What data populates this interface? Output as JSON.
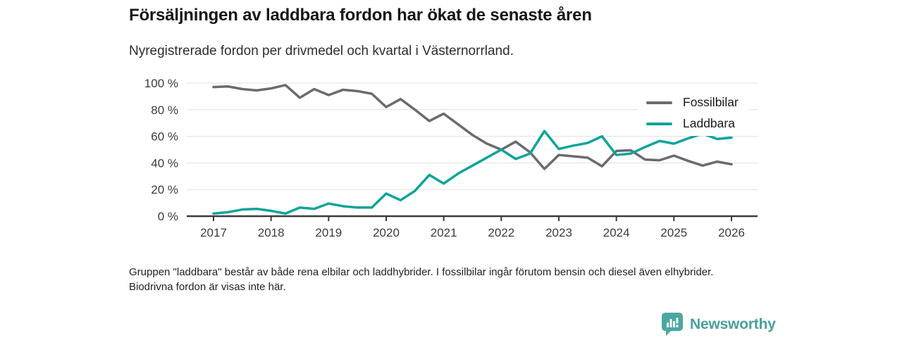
{
  "header": {
    "title": "Försäljningen av laddbara fordon har ökat de senaste åren",
    "subtitle": "Nyregistrerade fordon per drivmedel och kvartal i Västernorrland."
  },
  "footnote": {
    "text": "Gruppen \"laddbara\" består av både rena elbilar och laddhybrider. I fossilbilar ingår förutom bensin och diesel även elhybrider. Biodrivna fordon är visas inte här."
  },
  "branding": {
    "logo_text": "Newsworthy",
    "logo_icon": "bar-chart-badge-icon",
    "logo_color": "#47a09d",
    "badge_color": "#4ba7a2"
  },
  "chart_data": {
    "type": "line",
    "title": "Försäljningen av laddbara fordon har ökat de senaste åren",
    "subtitle": "Nyregistrerade fordon per drivmedel och kvartal i Västernorrland.",
    "xlabel": "",
    "ylabel": "",
    "x_frequency": "quarterly",
    "x_range": "2017 Q1 - 2026 Q1",
    "x_tick_labels": [
      "2017",
      "2018",
      "2019",
      "2020",
      "2021",
      "2022",
      "2023",
      "2024",
      "2025",
      "2026"
    ],
    "y_ticks": [
      0,
      20,
      40,
      60,
      80,
      100
    ],
    "y_tick_labels": [
      "0 %",
      "20 %",
      "40 %",
      "60 %",
      "80 %",
      "100 %"
    ],
    "ylim": [
      0,
      100
    ],
    "grid": "horizontal",
    "legend_position": "top-right",
    "axis_color": "#3a3a3a",
    "grid_color": "#e0e0e0",
    "series": [
      {
        "name": "Fossilbilar",
        "color": "#6a6a70",
        "values": [
          97,
          97.5,
          95.5,
          94.5,
          96,
          98.5,
          89,
          95.5,
          91,
          95,
          94,
          92,
          82,
          88,
          80,
          71.5,
          77,
          69,
          61,
          54.5,
          50,
          56,
          48,
          35.5,
          46,
          45,
          44,
          37.5,
          49,
          49.5,
          42.5,
          42,
          45.5,
          41.5,
          38,
          41,
          39
        ]
      },
      {
        "name": "Laddbara",
        "color": "#0da499",
        "values": [
          2,
          3,
          5,
          5.5,
          4,
          2,
          6.5,
          5.5,
          9.5,
          7.5,
          6.5,
          6.5,
          17,
          12,
          19,
          31,
          24.5,
          32,
          38,
          44,
          50,
          43,
          47,
          64,
          50.5,
          53,
          55,
          60,
          46,
          47,
          52,
          56.5,
          54.5,
          58.5,
          62,
          58,
          59
        ]
      }
    ]
  }
}
